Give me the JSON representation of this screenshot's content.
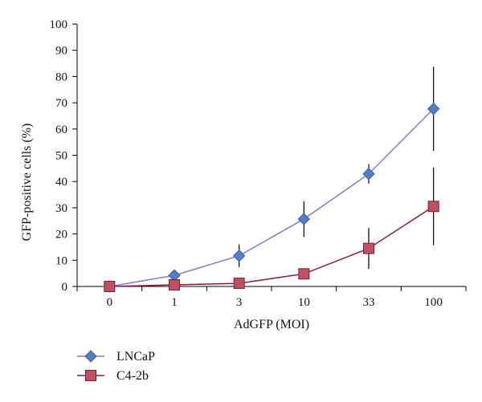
{
  "chart_data": {
    "type": "line",
    "categories": [
      "0",
      "1",
      "3",
      "10",
      "33",
      "100"
    ],
    "xlabel": "AdGFP (MOI)",
    "ylabel": "GFP-positive cells (%)",
    "ylim": [
      0,
      100
    ],
    "yticks": [
      0,
      10,
      20,
      30,
      40,
      50,
      60,
      70,
      80,
      90,
      100
    ],
    "grid": false,
    "legend_position": "bottom-left",
    "series": [
      {
        "name": "LNCaP",
        "marker": "diamond",
        "line_color": "#7f7fc0",
        "marker_color": "#4f7fc8",
        "values": [
          0,
          4.2,
          11.7,
          25.7,
          42.9,
          67.7
        ],
        "error": [
          0,
          0.8,
          4.3,
          6.8,
          3.7,
          16.0
        ]
      },
      {
        "name": "C4-2b",
        "marker": "square",
        "line_color": "#8b1a4a",
        "marker_color": "#c0505e",
        "values": [
          0,
          0.6,
          1.2,
          4.8,
          14.5,
          30.5
        ],
        "error": [
          0,
          0,
          0,
          0,
          7.8,
          14.8
        ]
      }
    ]
  }
}
